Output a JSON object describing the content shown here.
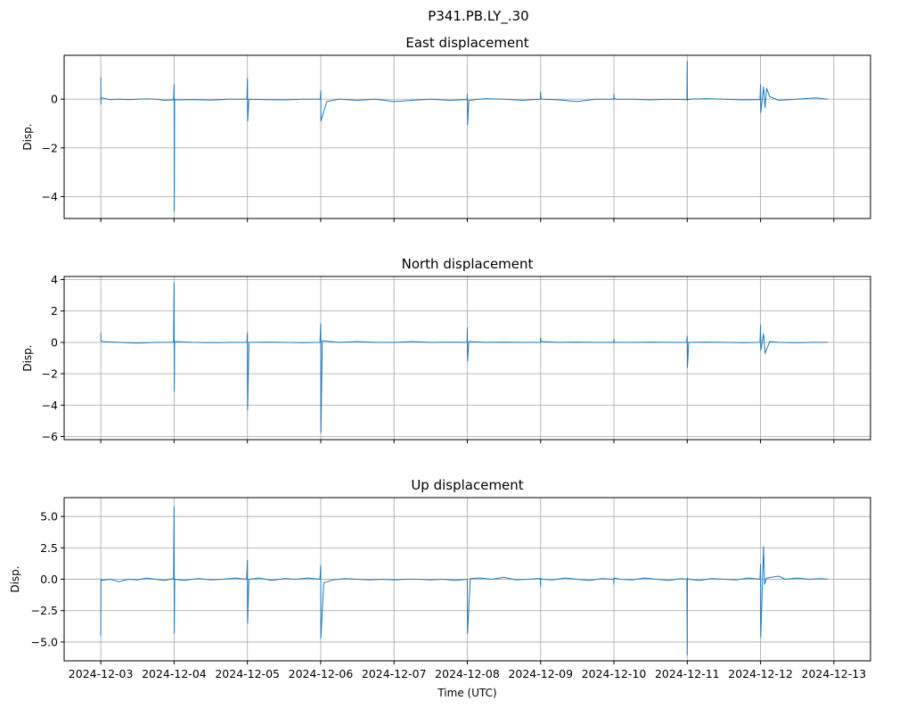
{
  "figure_title": "P341.PB.LY_.30",
  "colors": {
    "series": "#1f77b4",
    "grid": "#b0b0b0",
    "axes": "#000000"
  },
  "chart_data": [
    {
      "type": "line",
      "title": "East displacement",
      "ylabel": "Disp.",
      "xlabel": "",
      "xlim": [
        "2024-12-02T12:00",
        "2024-12-13T12:00"
      ],
      "ylim": [
        -4.9,
        1.8
      ],
      "yticks": [
        0,
        -2,
        -4
      ],
      "yticklabels": [
        "0",
        "−2",
        "−4"
      ],
      "grid": true,
      "series": [
        {
          "x": [
            "2024-12-03T00:00",
            "2024-12-03T00:02",
            "2024-12-03T00:05",
            "2024-12-03T00:15",
            "2024-12-03T03:00",
            "2024-12-03T06:00",
            "2024-12-03T09:00",
            "2024-12-03T12:00",
            "2024-12-03T15:00",
            "2024-12-03T18:00",
            "2024-12-03T21:00",
            "2024-12-03T23:50",
            "2024-12-04T00:00",
            "2024-12-04T00:03",
            "2024-12-04T00:08",
            "2024-12-04T00:30",
            "2024-12-04T06:00",
            "2024-12-04T12:00",
            "2024-12-04T18:00",
            "2024-12-04T23:50",
            "2024-12-05T00:00",
            "2024-12-05T00:05",
            "2024-12-05T00:30",
            "2024-12-05T06:00",
            "2024-12-05T12:00",
            "2024-12-05T18:00",
            "2024-12-05T23:50",
            "2024-12-06T00:00",
            "2024-12-06T00:05",
            "2024-12-06T02:00",
            "2024-12-06T06:00",
            "2024-12-06T12:00",
            "2024-12-06T18:00",
            "2024-12-07T00:00",
            "2024-12-07T06:00",
            "2024-12-07T12:00",
            "2024-12-07T18:00",
            "2024-12-07T23:55",
            "2024-12-08T00:00",
            "2024-12-08T00:05",
            "2024-12-08T00:30",
            "2024-12-08T06:00",
            "2024-12-08T12:00",
            "2024-12-08T18:00",
            "2024-12-08T23:55",
            "2024-12-09T00:00",
            "2024-12-09T00:05",
            "2024-12-09T00:30",
            "2024-12-09T06:00",
            "2024-12-09T12:00",
            "2024-12-09T18:00",
            "2024-12-09T23:55",
            "2024-12-10T00:00",
            "2024-12-10T00:05",
            "2024-12-10T00:30",
            "2024-12-10T06:00",
            "2024-12-10T12:00",
            "2024-12-10T18:00",
            "2024-12-10T23:55",
            "2024-12-11T00:00",
            "2024-12-11T00:03",
            "2024-12-11T00:30",
            "2024-12-11T06:00",
            "2024-12-11T12:00",
            "2024-12-11T18:00",
            "2024-12-11T23:50",
            "2024-12-12T00:00",
            "2024-12-12T00:05",
            "2024-12-12T01:00",
            "2024-12-12T01:30",
            "2024-12-12T02:00",
            "2024-12-12T03:00",
            "2024-12-12T06:00",
            "2024-12-12T12:00",
            "2024-12-12T18:00",
            "2024-12-12T22:00"
          ],
          "y": [
            0.9,
            -0.2,
            0.1,
            0.05,
            -0.02,
            0.0,
            -0.02,
            0.0,
            0.01,
            0.0,
            -0.05,
            -0.03,
            0.6,
            -4.6,
            0.0,
            -0.03,
            -0.02,
            -0.04,
            0.0,
            0.0,
            0.85,
            -0.9,
            0.0,
            -0.02,
            -0.03,
            0.0,
            0.0,
            0.35,
            -0.9,
            -0.1,
            0.0,
            -0.05,
            0.0,
            -0.1,
            -0.05,
            0.0,
            -0.05,
            -0.02,
            0.2,
            -1.05,
            -0.05,
            0.02,
            0.0,
            -0.05,
            0.0,
            0.3,
            0.05,
            0.0,
            -0.03,
            -0.1,
            0.0,
            0.0,
            0.2,
            0.05,
            0.0,
            0.0,
            -0.03,
            0.0,
            -0.02,
            1.55,
            -0.05,
            0.0,
            0.02,
            0.0,
            -0.03,
            -0.02,
            0.6,
            -0.55,
            0.5,
            -0.35,
            0.45,
            0.1,
            -0.05,
            0.0,
            0.05,
            0.0
          ]
        }
      ]
    },
    {
      "type": "line",
      "title": "North displacement",
      "ylabel": "Disp.",
      "xlabel": "",
      "xlim": [
        "2024-12-02T12:00",
        "2024-12-13T12:00"
      ],
      "ylim": [
        -6.2,
        4.2
      ],
      "yticks": [
        4,
        2,
        0,
        -2,
        -4,
        -6
      ],
      "yticklabels": [
        "4",
        "2",
        "0",
        "−2",
        "−4",
        "−6"
      ],
      "grid": true,
      "series": [
        {
          "x": [
            "2024-12-03T00:00",
            "2024-12-03T00:05",
            "2024-12-03T00:30",
            "2024-12-03T06:00",
            "2024-12-03T12:00",
            "2024-12-03T18:00",
            "2024-12-03T23:50",
            "2024-12-04T00:00",
            "2024-12-04T00:03",
            "2024-12-04T00:08",
            "2024-12-04T00:30",
            "2024-12-04T06:00",
            "2024-12-04T12:00",
            "2024-12-04T18:00",
            "2024-12-04T23:50",
            "2024-12-05T00:00",
            "2024-12-05T00:04",
            "2024-12-05T00:30",
            "2024-12-05T06:00",
            "2024-12-05T12:00",
            "2024-12-05T18:00",
            "2024-12-05T23:45",
            "2024-12-06T00:00",
            "2024-12-06T00:05",
            "2024-12-06T00:30",
            "2024-12-06T06:00",
            "2024-12-06T12:00",
            "2024-12-06T18:00",
            "2024-12-07T00:00",
            "2024-12-07T06:00",
            "2024-12-07T12:00",
            "2024-12-07T18:00",
            "2024-12-07T23:55",
            "2024-12-08T00:00",
            "2024-12-08T00:05",
            "2024-12-08T00:30",
            "2024-12-08T06:00",
            "2024-12-08T12:00",
            "2024-12-08T18:00",
            "2024-12-08T23:55",
            "2024-12-09T00:00",
            "2024-12-09T00:05",
            "2024-12-09T00:30",
            "2024-12-09T06:00",
            "2024-12-09T12:00",
            "2024-12-09T18:00",
            "2024-12-09T23:55",
            "2024-12-10T00:00",
            "2024-12-10T00:05",
            "2024-12-10T00:30",
            "2024-12-10T06:00",
            "2024-12-10T12:00",
            "2024-12-10T18:00",
            "2024-12-10T23:50",
            "2024-12-11T00:00",
            "2024-12-11T00:03",
            "2024-12-11T00:30",
            "2024-12-11T06:00",
            "2024-12-11T12:00",
            "2024-12-11T18:00",
            "2024-12-11T23:50",
            "2024-12-12T00:00",
            "2024-12-12T00:05",
            "2024-12-12T01:00",
            "2024-12-12T01:30",
            "2024-12-12T03:00",
            "2024-12-12T06:00",
            "2024-12-12T12:00",
            "2024-12-12T18:00",
            "2024-12-12T22:00"
          ],
          "y": [
            0.6,
            0.1,
            0.05,
            0.0,
            -0.05,
            0.0,
            0.0,
            3.8,
            -3.1,
            0.0,
            0.05,
            0.0,
            -0.02,
            0.0,
            0.0,
            0.6,
            -4.3,
            0.0,
            0.02,
            0.0,
            -0.02,
            0.0,
            1.2,
            -5.75,
            0.1,
            0.0,
            0.05,
            0.0,
            0.0,
            0.05,
            0.0,
            0.02,
            0.0,
            0.95,
            -1.2,
            0.05,
            0.0,
            0.02,
            0.0,
            0.0,
            0.3,
            0.1,
            0.05,
            0.0,
            0.02,
            0.0,
            0.0,
            0.2,
            0.05,
            0.0,
            0.0,
            0.02,
            0.0,
            0.0,
            0.4,
            -1.6,
            0.0,
            0.02,
            0.0,
            -0.02,
            0.0,
            1.1,
            -0.5,
            0.55,
            -0.7,
            0.05,
            0.0,
            -0.02,
            0.0,
            0.0
          ]
        }
      ]
    },
    {
      "type": "line",
      "title": "Up displacement",
      "ylabel": "Disp.",
      "xlabel": "Time (UTC)",
      "xlim": [
        "2024-12-02T12:00",
        "2024-12-13T12:00"
      ],
      "ylim": [
        -6.5,
        6.5
      ],
      "yticks": [
        5.0,
        2.5,
        0.0,
        -2.5,
        -5.0
      ],
      "yticklabels": [
        "5.0",
        "2.5",
        "0.0",
        "−2.5",
        "−5.0"
      ],
      "grid": true,
      "series": [
        {
          "x": [
            "2024-12-03T00:00",
            "2024-12-03T00:03",
            "2024-12-03T00:20",
            "2024-12-03T03:00",
            "2024-12-03T06:00",
            "2024-12-03T09:00",
            "2024-12-03T12:00",
            "2024-12-03T15:00",
            "2024-12-03T18:00",
            "2024-12-03T21:00",
            "2024-12-03T23:50",
            "2024-12-04T00:00",
            "2024-12-04T00:03",
            "2024-12-04T00:10",
            "2024-12-04T03:00",
            "2024-12-04T08:00",
            "2024-12-04T12:00",
            "2024-12-04T16:00",
            "2024-12-04T20:00",
            "2024-12-04T23:45",
            "2024-12-05T00:00",
            "2024-12-05T00:03",
            "2024-12-05T00:30",
            "2024-12-05T04:00",
            "2024-12-05T08:00",
            "2024-12-05T12:00",
            "2024-12-05T16:00",
            "2024-12-05T20:00",
            "2024-12-05T23:45",
            "2024-12-06T00:00",
            "2024-12-06T00:03",
            "2024-12-06T01:00",
            "2024-12-06T04:00",
            "2024-12-06T08:00",
            "2024-12-06T12:00",
            "2024-12-06T16:00",
            "2024-12-06T20:00",
            "2024-12-07T00:00",
            "2024-12-07T04:00",
            "2024-12-07T08:00",
            "2024-12-07T12:00",
            "2024-12-07T16:00",
            "2024-12-07T20:00",
            "2024-12-07T23:55",
            "2024-12-08T00:00",
            "2024-12-08T00:03",
            "2024-12-08T01:00",
            "2024-12-08T04:00",
            "2024-12-08T08:00",
            "2024-12-08T12:00",
            "2024-12-08T16:00",
            "2024-12-08T20:00",
            "2024-12-08T23:55",
            "2024-12-09T00:00",
            "2024-12-09T00:03",
            "2024-12-09T01:00",
            "2024-12-09T04:00",
            "2024-12-09T08:00",
            "2024-12-09T12:00",
            "2024-12-09T16:00",
            "2024-12-09T20:00",
            "2024-12-09T23:55",
            "2024-12-10T00:00",
            "2024-12-10T00:03",
            "2024-12-10T02:00",
            "2024-12-10T06:00",
            "2024-12-10T10:00",
            "2024-12-10T14:00",
            "2024-12-10T18:00",
            "2024-12-10T22:00",
            "2024-12-10T23:55",
            "2024-12-11T00:00",
            "2024-12-11T00:03",
            "2024-12-11T00:30",
            "2024-12-11T04:00",
            "2024-12-11T08:00",
            "2024-12-11T12:00",
            "2024-12-11T16:00",
            "2024-12-11T20:00",
            "2024-12-11T23:50",
            "2024-12-12T00:00",
            "2024-12-12T00:03",
            "2024-12-12T01:00",
            "2024-12-12T01:20",
            "2024-12-12T02:00",
            "2024-12-12T06:00",
            "2024-12-12T08:00",
            "2024-12-12T12:00",
            "2024-12-12T16:00",
            "2024-12-12T20:00",
            "2024-12-12T22:00"
          ],
          "y": [
            -4.5,
            0.0,
            -0.1,
            0.0,
            -0.2,
            0.0,
            -0.05,
            0.1,
            0.0,
            -0.1,
            0.05,
            5.8,
            -4.3,
            0.0,
            -0.1,
            0.05,
            -0.05,
            0.0,
            0.1,
            0.0,
            1.5,
            -3.5,
            0.0,
            0.1,
            -0.1,
            0.05,
            0.0,
            0.1,
            0.0,
            1.1,
            -4.7,
            -0.3,
            -0.05,
            0.05,
            0.0,
            -0.05,
            0.0,
            -0.05,
            0.0,
            0.0,
            -0.05,
            0.0,
            -0.1,
            0.0,
            -0.2,
            -4.3,
            0.05,
            0.1,
            0.0,
            0.15,
            -0.05,
            0.0,
            0.05,
            -0.6,
            0.05,
            0.0,
            -0.05,
            0.1,
            0.0,
            -0.1,
            0.05,
            0.0,
            -0.4,
            0.1,
            0.0,
            -0.05,
            0.1,
            0.0,
            -0.1,
            0.05,
            0.0,
            -6.0,
            0.1,
            0.0,
            -0.1,
            0.05,
            0.0,
            -0.05,
            0.1,
            0.0,
            1.2,
            -4.6,
            2.6,
            -0.4,
            0.1,
            0.25,
            0.0,
            0.1,
            0.0,
            0.05,
            0.0
          ]
        }
      ]
    }
  ],
  "x_ticks": [
    "2024-12-03",
    "2024-12-04",
    "2024-12-05",
    "2024-12-06",
    "2024-12-07",
    "2024-12-08",
    "2024-12-09",
    "2024-12-10",
    "2024-12-11",
    "2024-12-12",
    "2024-12-13"
  ]
}
